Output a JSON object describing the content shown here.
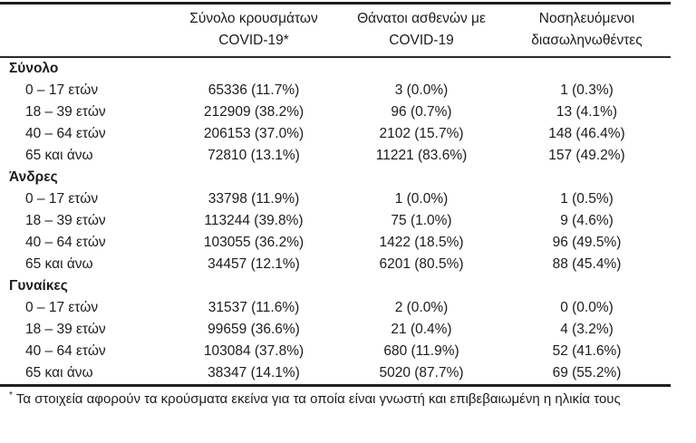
{
  "table": {
    "header": {
      "col_cases": {
        "line1": "Σύνολο κρουσμάτων",
        "line2": "COVID-19*"
      },
      "col_deaths": {
        "line1": "Θάνατοι ασθενών με",
        "line2": "COVID-19"
      },
      "col_intub": {
        "line1": "Νοσηλευόμενοι",
        "line2": "διασωληνωθέντες"
      }
    },
    "sections": [
      {
        "label": "Σύνολο",
        "rows": [
          {
            "label": "0 – 17 ετών",
            "cases": "65336 (11.7%)",
            "deaths": "3 (0.0%)",
            "intubated": "1 (0.3%)"
          },
          {
            "label": "18 – 39 ετών",
            "cases": "212909 (38.2%)",
            "deaths": "96 (0.7%)",
            "intubated": "13 (4.1%)"
          },
          {
            "label": "40 – 64 ετών",
            "cases": "206153 (37.0%)",
            "deaths": "2102 (15.7%)",
            "intubated": "148 (46.4%)"
          },
          {
            "label": "65 και άνω",
            "cases": "72810 (13.1%)",
            "deaths": "11221 (83.6%)",
            "intubated": "157 (49.2%)"
          }
        ]
      },
      {
        "label": "Άνδρες",
        "rows": [
          {
            "label": "0 – 17 ετών",
            "cases": "33798 (11.9%)",
            "deaths": "1 (0.0%)",
            "intubated": "1 (0.5%)"
          },
          {
            "label": "18 – 39 ετών",
            "cases": "113244 (39.8%)",
            "deaths": "75 (1.0%)",
            "intubated": "9 (4.6%)"
          },
          {
            "label": "40 – 64 ετών",
            "cases": "103055 (36.2%)",
            "deaths": "1422 (18.5%)",
            "intubated": "96 (49.5%)"
          },
          {
            "label": "65 και άνω",
            "cases": "34457 (12.1%)",
            "deaths": "6201 (80.5%)",
            "intubated": "88 (45.4%)"
          }
        ]
      },
      {
        "label": "Γυναίκες",
        "rows": [
          {
            "label": "0 – 17 ετών",
            "cases": "31537 (11.6%)",
            "deaths": "2 (0.0%)",
            "intubated": "0 (0.0%)"
          },
          {
            "label": "18 – 39 ετών",
            "cases": "99659 (36.6%)",
            "deaths": "21 (0.4%)",
            "intubated": "4 (3.2%)"
          },
          {
            "label": "40 – 64 ετών",
            "cases": "103084 (37.8%)",
            "deaths": "680 (11.9%)",
            "intubated": "52 (41.6%)"
          },
          {
            "label": "65 και άνω",
            "cases": "38347 (14.1%)",
            "deaths": "5020 (87.7%)",
            "intubated": "69 (55.2%)"
          }
        ]
      }
    ],
    "footnote": {
      "marker": "*",
      "text": "Τα στοιχεία αφορούν τα κρούσματα εκείνα για τα οποία είναι γνωστή και επιβεβαιωμένη η ηλικία τους"
    }
  }
}
